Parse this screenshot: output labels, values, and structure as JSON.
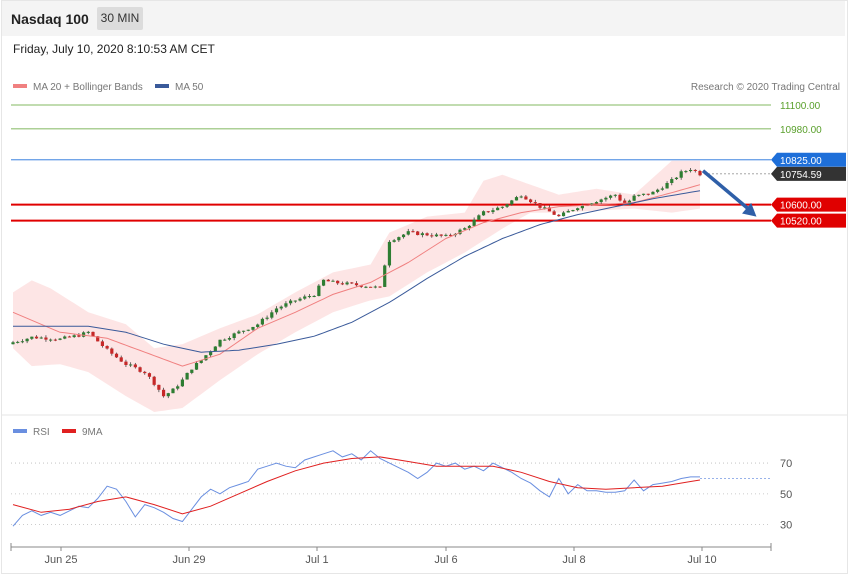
{
  "header": {
    "title": "Nasdaq 100",
    "timeframe_label": "30 MIN",
    "datetime": "Friday, July 10, 2020 8:10:53 AM CET"
  },
  "legend": {
    "ma20_label": "MA 20 + Bollinger Bands",
    "ma50_label": "MA 50",
    "copyright": "Research © 2020 Trading Central",
    "rsi_label": "RSI",
    "rsi_ma_label": "9MA"
  },
  "colors": {
    "up": "#2e7d32",
    "down": "#c62828",
    "ma20": "#f08080",
    "bb_fill": "#fde0e0",
    "ma50": "#3a5a9a",
    "resistance": "#5aa02c",
    "pivot": "#1e6fd9",
    "support": "#e00000",
    "rsi": "#6a8fe0",
    "rsi_ma": "#e02020"
  },
  "chart_data": [
    {
      "type": "candlestick",
      "title": "Nasdaq 100",
      "timeframe": "30 MIN",
      "x_tick_labels": [
        "Jun 25",
        "Jun 29",
        "Jul 1",
        "Jul 6",
        "Jul 8",
        "Jul 10"
      ],
      "ylim": [
        9560,
        11150
      ],
      "levels": [
        {
          "name": "resistance-2",
          "value": "11100.00",
          "kind": "resistance"
        },
        {
          "name": "resistance-1",
          "value": "10980.00",
          "kind": "resistance"
        },
        {
          "name": "pivot",
          "value": "10825.00",
          "kind": "pivot"
        },
        {
          "name": "last-price",
          "value": "10754.59",
          "kind": "last"
        },
        {
          "name": "support-1",
          "value": "10600.00",
          "kind": "support"
        },
        {
          "name": "support-2",
          "value": "10520.00",
          "kind": "support"
        }
      ],
      "series": [
        {
          "name": "MA 20 + Bollinger Bands"
        },
        {
          "name": "MA 50"
        }
      ],
      "close_path": [
        [
          0,
          9910
        ],
        [
          4,
          9935
        ],
        [
          8,
          9930
        ],
        [
          10,
          9925
        ],
        [
          14,
          9945
        ],
        [
          16,
          9960
        ],
        [
          20,
          9870
        ],
        [
          24,
          9800
        ],
        [
          26,
          9780
        ],
        [
          28,
          9760
        ],
        [
          30,
          9705
        ],
        [
          32,
          9640
        ],
        [
          34,
          9670
        ],
        [
          36,
          9720
        ],
        [
          38,
          9780
        ],
        [
          40,
          9820
        ],
        [
          44,
          9920
        ],
        [
          48,
          9960
        ],
        [
          52,
          10000
        ],
        [
          56,
          10080
        ],
        [
          60,
          10120
        ],
        [
          64,
          10150
        ],
        [
          66,
          10220
        ],
        [
          68,
          10210
        ],
        [
          72,
          10200
        ],
        [
          76,
          10190
        ],
        [
          78,
          10180
        ],
        [
          80,
          10420
        ],
        [
          84,
          10460
        ],
        [
          88,
          10450
        ],
        [
          92,
          10440
        ],
        [
          96,
          10480
        ],
        [
          100,
          10560
        ],
        [
          104,
          10590
        ],
        [
          108,
          10650
        ],
        [
          112,
          10590
        ],
        [
          116,
          10540
        ],
        [
          120,
          10590
        ],
        [
          124,
          10620
        ],
        [
          128,
          10650
        ],
        [
          130,
          10600
        ],
        [
          132,
          10640
        ],
        [
          136,
          10660
        ],
        [
          140,
          10720
        ],
        [
          142,
          10760
        ],
        [
          144,
          10780
        ],
        [
          146,
          10754.59
        ]
      ],
      "ma20_path": [
        [
          0,
          10060
        ],
        [
          10,
          9960
        ],
        [
          20,
          9930
        ],
        [
          28,
          9860
        ],
        [
          36,
          9790
        ],
        [
          44,
          9850
        ],
        [
          52,
          9980
        ],
        [
          60,
          10060
        ],
        [
          68,
          10150
        ],
        [
          76,
          10210
        ],
        [
          84,
          10310
        ],
        [
          92,
          10430
        ],
        [
          100,
          10510
        ],
        [
          108,
          10560
        ],
        [
          116,
          10590
        ],
        [
          124,
          10600
        ],
        [
          132,
          10610
        ],
        [
          140,
          10660
        ],
        [
          146,
          10700
        ]
      ],
      "bb_upper_path": [
        [
          0,
          10160
        ],
        [
          4,
          10220
        ],
        [
          8,
          10180
        ],
        [
          16,
          10060
        ],
        [
          24,
          10000
        ],
        [
          30,
          9880
        ],
        [
          36,
          9900
        ],
        [
          44,
          9980
        ],
        [
          52,
          10050
        ],
        [
          60,
          10160
        ],
        [
          68,
          10260
        ],
        [
          76,
          10300
        ],
        [
          80,
          10460
        ],
        [
          88,
          10540
        ],
        [
          96,
          10560
        ],
        [
          100,
          10720
        ],
        [
          104,
          10750
        ],
        [
          110,
          10700
        ],
        [
          116,
          10650
        ],
        [
          124,
          10680
        ],
        [
          132,
          10650
        ],
        [
          140,
          10820
        ],
        [
          146,
          10820
        ]
      ],
      "bb_lower_path": [
        [
          0,
          9880
        ],
        [
          4,
          9790
        ],
        [
          10,
          9800
        ],
        [
          16,
          9760
        ],
        [
          24,
          9640
        ],
        [
          30,
          9560
        ],
        [
          36,
          9580
        ],
        [
          44,
          9720
        ],
        [
          52,
          9850
        ],
        [
          60,
          9960
        ],
        [
          68,
          10060
        ],
        [
          76,
          10120
        ],
        [
          80,
          10140
        ],
        [
          88,
          10260
        ],
        [
          96,
          10360
        ],
        [
          100,
          10420
        ],
        [
          104,
          10480
        ],
        [
          110,
          10560
        ],
        [
          116,
          10560
        ],
        [
          124,
          10570
        ],
        [
          132,
          10580
        ],
        [
          140,
          10560
        ],
        [
          146,
          10580
        ]
      ],
      "ma50_path": [
        [
          0,
          9990
        ],
        [
          16,
          9990
        ],
        [
          24,
          9960
        ],
        [
          32,
          9900
        ],
        [
          40,
          9860
        ],
        [
          48,
          9870
        ],
        [
          56,
          9900
        ],
        [
          64,
          9940
        ],
        [
          72,
          10010
        ],
        [
          80,
          10110
        ],
        [
          88,
          10230
        ],
        [
          96,
          10340
        ],
        [
          104,
          10430
        ],
        [
          112,
          10500
        ],
        [
          120,
          10550
        ],
        [
          128,
          10590
        ],
        [
          136,
          10630
        ],
        [
          146,
          10670
        ]
      ],
      "forecast_arrow": [
        [
          146,
          10770
        ],
        [
          158,
          10540
        ]
      ]
    },
    {
      "type": "line",
      "title": "RSI",
      "x_tick_labels": [
        "Jun 25",
        "Jun 29",
        "Jul 1",
        "Jul 6",
        "Jul 8",
        "Jul 10"
      ],
      "ylim": [
        20,
        85
      ],
      "y_ticks": [
        70,
        50,
        30
      ],
      "reference_level": 60,
      "series": [
        {
          "name": "RSI",
          "points": [
            [
              0,
              29
            ],
            [
              2,
              36
            ],
            [
              4,
              39
            ],
            [
              6,
              36
            ],
            [
              8,
              38
            ],
            [
              10,
              36
            ],
            [
              12,
              39
            ],
            [
              14,
              42
            ],
            [
              16,
              41
            ],
            [
              18,
              47
            ],
            [
              20,
              55
            ],
            [
              22,
              53
            ],
            [
              24,
              45
            ],
            [
              26,
              35
            ],
            [
              28,
              43
            ],
            [
              30,
              41
            ],
            [
              32,
              38
            ],
            [
              34,
              34
            ],
            [
              36,
              32
            ],
            [
              38,
              40
            ],
            [
              40,
              48
            ],
            [
              42,
              53
            ],
            [
              44,
              50
            ],
            [
              46,
              54
            ],
            [
              48,
              56
            ],
            [
              50,
              58
            ],
            [
              52,
              66
            ],
            [
              54,
              68
            ],
            [
              56,
              70
            ],
            [
              58,
              68
            ],
            [
              60,
              67
            ],
            [
              62,
              72
            ],
            [
              64,
              74
            ],
            [
              66,
              76
            ],
            [
              68,
              78
            ],
            [
              70,
              74
            ],
            [
              72,
              76
            ],
            [
              74,
              72
            ],
            [
              76,
              78
            ],
            [
              78,
              73
            ],
            [
              80,
              70
            ],
            [
              82,
              67
            ],
            [
              84,
              64
            ],
            [
              86,
              60
            ],
            [
              88,
              64
            ],
            [
              90,
              70
            ],
            [
              92,
              68
            ],
            [
              94,
              70
            ],
            [
              96,
              66
            ],
            [
              98,
              68
            ],
            [
              100,
              65
            ],
            [
              102,
              70
            ],
            [
              104,
              67
            ],
            [
              106,
              64
            ],
            [
              108,
              60
            ],
            [
              110,
              57
            ],
            [
              112,
              52
            ],
            [
              114,
              48
            ],
            [
              116,
              60
            ],
            [
              118,
              50
            ],
            [
              120,
              56
            ],
            [
              122,
              52
            ],
            [
              124,
              52
            ],
            [
              126,
              51
            ],
            [
              128,
              51
            ],
            [
              130,
              52
            ],
            [
              132,
              59
            ],
            [
              134,
              52
            ],
            [
              136,
              56
            ],
            [
              138,
              57
            ],
            [
              140,
              58
            ],
            [
              142,
              60
            ],
            [
              144,
              61
            ],
            [
              146,
              61
            ]
          ]
        },
        {
          "name": "9MA",
          "points": [
            [
              0,
              43
            ],
            [
              6,
              38
            ],
            [
              12,
              40
            ],
            [
              18,
              45
            ],
            [
              24,
              48
            ],
            [
              30,
              43
            ],
            [
              36,
              37
            ],
            [
              42,
              42
            ],
            [
              48,
              50
            ],
            [
              54,
              58
            ],
            [
              60,
              65
            ],
            [
              66,
              70
            ],
            [
              72,
              73
            ],
            [
              78,
              74
            ],
            [
              84,
              71
            ],
            [
              90,
              68
            ],
            [
              96,
              68
            ],
            [
              102,
              68
            ],
            [
              108,
              64
            ],
            [
              114,
              58
            ],
            [
              120,
              54
            ],
            [
              126,
              53
            ],
            [
              132,
              54
            ],
            [
              138,
              55
            ],
            [
              144,
              58
            ],
            [
              146,
              59
            ]
          ]
        }
      ]
    }
  ]
}
